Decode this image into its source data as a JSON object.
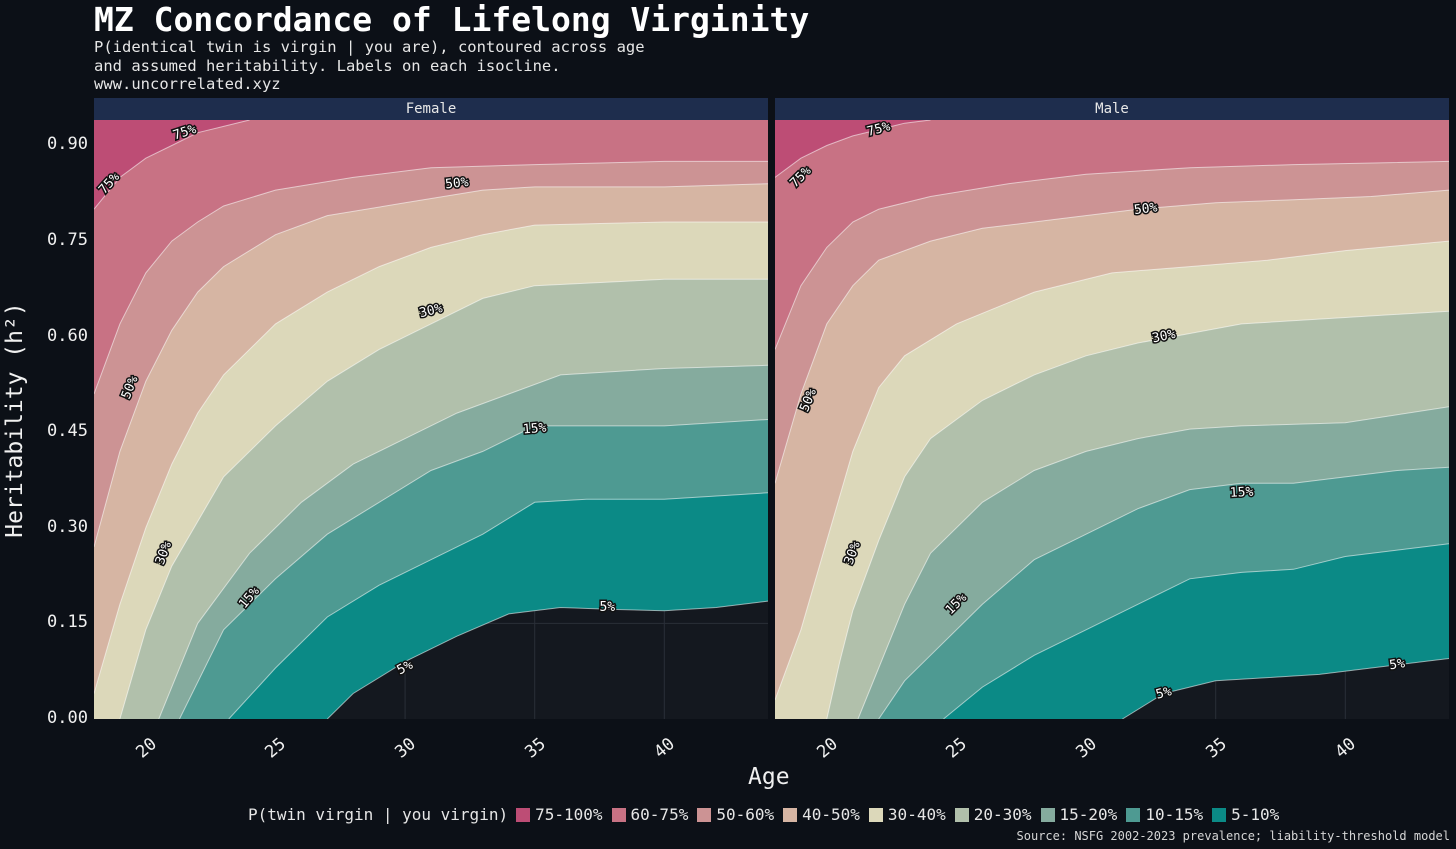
{
  "title": "MZ Concordance of Lifelong Virginity",
  "subtitle": "P(identical twin is virgin | you are), contoured across age\nand assumed heritability. Labels on each isocline.\nwww.uncorrelated.xyz",
  "source": "Source: NSFG 2002-2023 prevalence; liability-threshold model",
  "colors": {
    "background": "#0c1017",
    "panel_bg": "#14181f",
    "strip": "#1e2d4d",
    "bands": [
      "#0b8a86",
      "#4e9a92",
      "#85ab9e",
      "#b1c0ab",
      "#dcd8ba",
      "#d6b5a3",
      "#cc9394",
      "#c87284",
      "#bd4d75"
    ]
  },
  "chart_data": {
    "type": "contour",
    "xlabel": "Age",
    "ylabel": "Heritability (h²)",
    "xlim": [
      18,
      44
    ],
    "ylim": [
      0,
      0.94
    ],
    "x_ticks": [
      "20",
      "25",
      "30",
      "35",
      "40"
    ],
    "y_ticks": [
      "0.00",
      "0.15",
      "0.30",
      "0.45",
      "0.60",
      "0.75",
      "0.90"
    ],
    "legend_title": "P(twin virgin | you virgin)",
    "legend": [
      "75-100%",
      "60-75%",
      "50-60%",
      "40-50%",
      "30-40%",
      "20-30%",
      "15-20%",
      "10-15%",
      "5-10%"
    ],
    "legend_position": "bottom",
    "level_values": [
      0.05,
      0.1,
      0.15,
      0.2,
      0.3,
      0.4,
      0.5,
      0.6,
      0.75
    ],
    "panels": [
      {
        "name": "Female",
        "isoclines": [
          [
            [
              27,
              0.0
            ],
            [
              28,
              0.04
            ],
            [
              30,
              0.09
            ],
            [
              32,
              0.13
            ],
            [
              34,
              0.165
            ],
            [
              36,
              0.175
            ],
            [
              38,
              0.172
            ],
            [
              40,
              0.17
            ],
            [
              42,
              0.175
            ],
            [
              44,
              0.185
            ]
          ],
          [
            [
              23.2,
              0.0
            ],
            [
              25,
              0.08
            ],
            [
              27,
              0.16
            ],
            [
              29,
              0.21
            ],
            [
              31,
              0.25
            ],
            [
              33,
              0.29
            ],
            [
              35,
              0.34
            ],
            [
              37,
              0.345
            ],
            [
              40,
              0.345
            ],
            [
              44,
              0.355
            ]
          ],
          [
            [
              21.3,
              0.0
            ],
            [
              23,
              0.14
            ],
            [
              25,
              0.22
            ],
            [
              27,
              0.29
            ],
            [
              29,
              0.34
            ],
            [
              31,
              0.39
            ],
            [
              33,
              0.42
            ],
            [
              35,
              0.46
            ],
            [
              37,
              0.46
            ],
            [
              40,
              0.46
            ],
            [
              44,
              0.47
            ]
          ],
          [
            [
              20.5,
              0.0
            ],
            [
              22,
              0.15
            ],
            [
              24,
              0.26
            ],
            [
              26,
              0.34
            ],
            [
              28,
              0.4
            ],
            [
              30,
              0.44
            ],
            [
              32,
              0.48
            ],
            [
              34,
              0.51
            ],
            [
              36,
              0.54
            ],
            [
              40,
              0.55
            ],
            [
              44,
              0.555
            ]
          ],
          [
            [
              19.0,
              0.0
            ],
            [
              20,
              0.14
            ],
            [
              21,
              0.24
            ],
            [
              22,
              0.31
            ],
            [
              23,
              0.38
            ],
            [
              25,
              0.46
            ],
            [
              27,
              0.53
            ],
            [
              29,
              0.58
            ],
            [
              31,
              0.62
            ],
            [
              33,
              0.66
            ],
            [
              35,
              0.68
            ],
            [
              40,
              0.69
            ],
            [
              44,
              0.69
            ]
          ],
          [
            [
              18.0,
              0.04
            ],
            [
              19,
              0.18
            ],
            [
              20,
              0.3
            ],
            [
              21,
              0.4
            ],
            [
              22,
              0.48
            ],
            [
              23,
              0.54
            ],
            [
              25,
              0.62
            ],
            [
              27,
              0.67
            ],
            [
              29,
              0.71
            ],
            [
              31,
              0.74
            ],
            [
              33,
              0.76
            ],
            [
              35,
              0.775
            ],
            [
              40,
              0.78
            ],
            [
              44,
              0.78
            ]
          ],
          [
            [
              18.0,
              0.27
            ],
            [
              19,
              0.42
            ],
            [
              20,
              0.53
            ],
            [
              21,
              0.61
            ],
            [
              22,
              0.67
            ],
            [
              23,
              0.71
            ],
            [
              25,
              0.76
            ],
            [
              27,
              0.79
            ],
            [
              30,
              0.81
            ],
            [
              33,
              0.83
            ],
            [
              35,
              0.835
            ],
            [
              40,
              0.835
            ],
            [
              44,
              0.84
            ]
          ],
          [
            [
              18.0,
              0.51
            ],
            [
              19,
              0.62
            ],
            [
              20,
              0.7
            ],
            [
              21,
              0.75
            ],
            [
              22,
              0.78
            ],
            [
              23,
              0.805
            ],
            [
              25,
              0.83
            ],
            [
              28,
              0.85
            ],
            [
              31,
              0.865
            ],
            [
              35,
              0.87
            ],
            [
              40,
              0.875
            ],
            [
              44,
              0.875
            ]
          ],
          [
            [
              18.0,
              0.8
            ],
            [
              19,
              0.85
            ],
            [
              20,
              0.88
            ],
            [
              21,
              0.9
            ],
            [
              22,
              0.92
            ],
            [
              23,
              0.93
            ],
            [
              24,
              0.94
            ]
          ]
        ],
        "contour_labels": [
          {
            "text": "5%",
            "x": 30.0,
            "y": 0.08,
            "angle": -28
          },
          {
            "text": "5%",
            "x": 37.8,
            "y": 0.175,
            "angle": 0
          },
          {
            "text": "15%",
            "x": 24.0,
            "y": 0.19,
            "angle": -50
          },
          {
            "text": "15%",
            "x": 35.0,
            "y": 0.455,
            "angle": -5
          },
          {
            "text": "30%",
            "x": 20.7,
            "y": 0.26,
            "angle": -70
          },
          {
            "text": "30%",
            "x": 31.0,
            "y": 0.64,
            "angle": -14
          },
          {
            "text": "50%",
            "x": 19.4,
            "y": 0.52,
            "angle": -68
          },
          {
            "text": "50%",
            "x": 32.0,
            "y": 0.84,
            "angle": -6
          },
          {
            "text": "75%",
            "x": 18.6,
            "y": 0.84,
            "angle": -48
          },
          {
            "text": "75%",
            "x": 21.5,
            "y": 0.92,
            "angle": -18
          }
        ]
      },
      {
        "name": "Male",
        "isoclines": [
          [
            [
              31.4,
              0.0
            ],
            [
              33,
              0.04
            ],
            [
              35,
              0.06
            ],
            [
              37,
              0.065
            ],
            [
              39,
              0.07
            ],
            [
              41,
              0.08
            ],
            [
              43,
              0.09
            ],
            [
              44,
              0.095
            ]
          ],
          [
            [
              24.5,
              0.0
            ],
            [
              26,
              0.05
            ],
            [
              28,
              0.1
            ],
            [
              30,
              0.14
            ],
            [
              32,
              0.18
            ],
            [
              34,
              0.22
            ],
            [
              36,
              0.23
            ],
            [
              38,
              0.235
            ],
            [
              40,
              0.255
            ],
            [
              42,
              0.265
            ],
            [
              44,
              0.275
            ]
          ],
          [
            [
              22.0,
              0.0
            ],
            [
              23,
              0.06
            ],
            [
              24,
              0.1
            ],
            [
              26,
              0.18
            ],
            [
              28,
              0.25
            ],
            [
              30,
              0.29
            ],
            [
              32,
              0.33
            ],
            [
              34,
              0.36
            ],
            [
              36,
              0.37
            ],
            [
              38,
              0.37
            ],
            [
              40,
              0.38
            ],
            [
              42,
              0.39
            ],
            [
              44,
              0.395
            ]
          ],
          [
            [
              21.2,
              0.0
            ],
            [
              22,
              0.08
            ],
            [
              23,
              0.18
            ],
            [
              24,
              0.26
            ],
            [
              26,
              0.34
            ],
            [
              28,
              0.39
            ],
            [
              30,
              0.42
            ],
            [
              32,
              0.44
            ],
            [
              34,
              0.455
            ],
            [
              36,
              0.46
            ],
            [
              40,
              0.465
            ],
            [
              44,
              0.49
            ]
          ],
          [
            [
              20.0,
              0.0
            ],
            [
              20.5,
              0.09
            ],
            [
              21,
              0.17
            ],
            [
              22,
              0.28
            ],
            [
              23,
              0.38
            ],
            [
              24,
              0.44
            ],
            [
              26,
              0.5
            ],
            [
              28,
              0.54
            ],
            [
              30,
              0.57
            ],
            [
              32,
              0.59
            ],
            [
              34,
              0.605
            ],
            [
              36,
              0.62
            ],
            [
              40,
              0.63
            ],
            [
              44,
              0.64
            ]
          ],
          [
            [
              18.0,
              0.03
            ],
            [
              19,
              0.14
            ],
            [
              20,
              0.28
            ],
            [
              21,
              0.42
            ],
            [
              22,
              0.52
            ],
            [
              23,
              0.57
            ],
            [
              25,
              0.62
            ],
            [
              28,
              0.67
            ],
            [
              31,
              0.7
            ],
            [
              34,
              0.71
            ],
            [
              37,
              0.72
            ],
            [
              40,
              0.735
            ],
            [
              44,
              0.75
            ]
          ],
          [
            [
              18.0,
              0.37
            ],
            [
              19,
              0.51
            ],
            [
              20,
              0.62
            ],
            [
              21,
              0.68
            ],
            [
              22,
              0.72
            ],
            [
              24,
              0.75
            ],
            [
              26,
              0.77
            ],
            [
              29,
              0.785
            ],
            [
              32,
              0.8
            ],
            [
              35,
              0.81
            ],
            [
              38,
              0.815
            ],
            [
              41,
              0.82
            ],
            [
              44,
              0.83
            ]
          ],
          [
            [
              18.0,
              0.58
            ],
            [
              19,
              0.68
            ],
            [
              20,
              0.74
            ],
            [
              21,
              0.78
            ],
            [
              22,
              0.8
            ],
            [
              24,
              0.82
            ],
            [
              27,
              0.84
            ],
            [
              30,
              0.855
            ],
            [
              34,
              0.865
            ],
            [
              38,
              0.87
            ],
            [
              44,
              0.875
            ]
          ],
          [
            [
              18.0,
              0.85
            ],
            [
              19,
              0.88
            ],
            [
              20,
              0.9
            ],
            [
              21,
              0.915
            ],
            [
              22,
              0.925
            ],
            [
              23,
              0.935
            ],
            [
              24,
              0.94
            ]
          ]
        ],
        "contour_labels": [
          {
            "text": "5%",
            "x": 33.0,
            "y": 0.04,
            "angle": -15
          },
          {
            "text": "5%",
            "x": 42.0,
            "y": 0.085,
            "angle": -8
          },
          {
            "text": "15%",
            "x": 25.0,
            "y": 0.18,
            "angle": -45
          },
          {
            "text": "15%",
            "x": 36.0,
            "y": 0.355,
            "angle": -3
          },
          {
            "text": "30%",
            "x": 21.0,
            "y": 0.26,
            "angle": -70
          },
          {
            "text": "30%",
            "x": 33.0,
            "y": 0.6,
            "angle": -12
          },
          {
            "text": "50%",
            "x": 19.3,
            "y": 0.5,
            "angle": -68
          },
          {
            "text": "50%",
            "x": 32.3,
            "y": 0.8,
            "angle": -7
          },
          {
            "text": "75%",
            "x": 19.0,
            "y": 0.85,
            "angle": -45
          },
          {
            "text": "75%",
            "x": 22.0,
            "y": 0.925,
            "angle": -15
          }
        ]
      }
    ]
  }
}
